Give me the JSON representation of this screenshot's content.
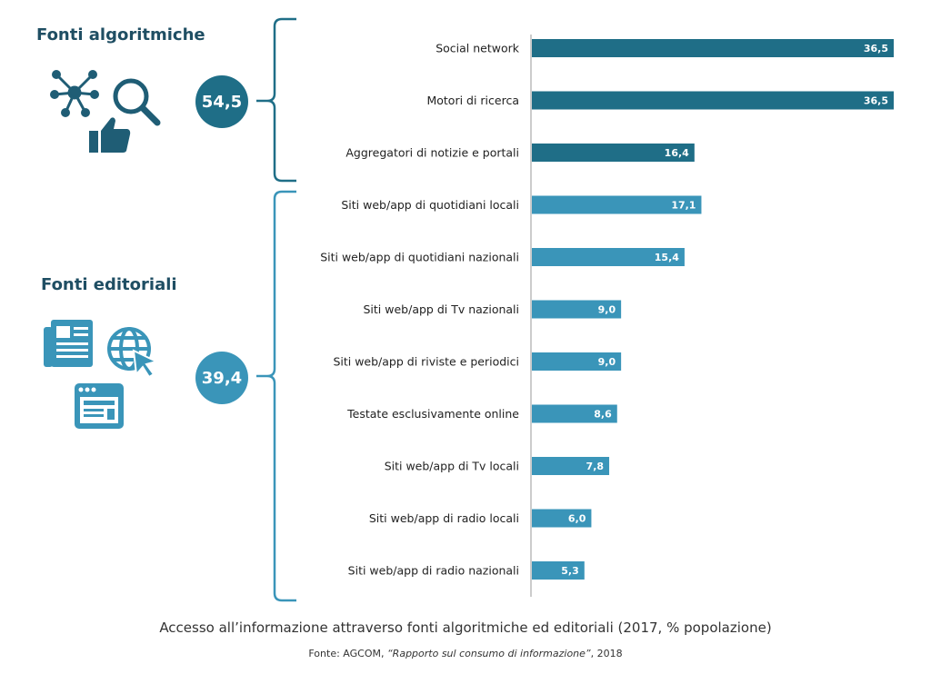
{
  "groups": [
    {
      "title": "Fonti algoritmiche",
      "total": "54,5",
      "color": "#1f6e87"
    },
    {
      "title": "Fonti editoriali",
      "total": "39,4",
      "color": "#3a95b9"
    }
  ],
  "colors": {
    "algorithmic": "#1f6e87",
    "editorial": "#3a95b9",
    "axis": "#999999",
    "icon_dark": "#1f5d75",
    "icon_light": "#3a95b9"
  },
  "caption": "Accesso all’informazione attraverso fonti algoritmiche ed editoriali (2017, % popolazione)",
  "source": {
    "prefix": "Fonte: AGCOM, ",
    "title": "“Rapporto sul consumo di informazione”",
    "suffix": ", 2018"
  },
  "chart_data": {
    "type": "bar",
    "orientation": "horizontal",
    "title": "Accesso all’informazione attraverso fonti algoritmiche ed editoriali (2017, % popolazione)",
    "xlim": [
      0,
      36.5
    ],
    "categories": [
      "Social network",
      "Motori di ricerca",
      "Aggregatori di notizie e portali",
      "Siti web/app di quotidiani locali",
      "Siti web/app di quotidiani nazionali",
      "Siti web/app di Tv nazionali",
      "Siti web/app di riviste e periodici",
      "Testate esclusivamente online",
      "Siti web/app di Tv locali",
      "Siti web/app di radio locali",
      "Siti web/app di radio nazionali"
    ],
    "values": [
      36.5,
      36.5,
      16.4,
      17.1,
      15.4,
      9.0,
      9.0,
      8.6,
      7.8,
      6.0,
      5.3
    ],
    "labels": [
      "36,5",
      "36,5",
      "16,4",
      "17,1",
      "15,4",
      "9,0",
      "9,0",
      "8,6",
      "7,8",
      "6,0",
      "5,3"
    ],
    "group": [
      "algorithmic",
      "algorithmic",
      "algorithmic",
      "editorial",
      "editorial",
      "editorial",
      "editorial",
      "editorial",
      "editorial",
      "editorial",
      "editorial"
    ]
  }
}
